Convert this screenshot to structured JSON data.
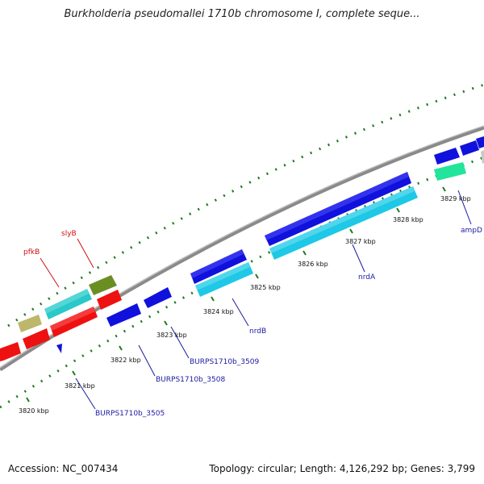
{
  "title": "Burkholderia pseudomallei 1710b chromosome I, complete seque...",
  "footer": {
    "accession": "Accession: NC_007434",
    "summary": "Topology: circular; Length: 4,126,292 bp; Genes: 3,799"
  },
  "colors": {
    "backbone": "#888888",
    "tick": "#1f7a1f",
    "label_blue": "#1a1aa0",
    "label_red": "#cc1111",
    "gene_blue": "#1111dd",
    "gene_cyan": "#1ec8e6",
    "gene_red": "#ee1111",
    "gene_olive": "#6b8e23",
    "gene_khaki": "#bdb76b",
    "gene_teal": "#2ad1c4",
    "gene_green": "#22e49a"
  },
  "scale_labels": [
    "3820 kbp",
    "3821 kbp",
    "3822 kbp",
    "3823 kbp",
    "3824 kbp",
    "3825 kbp",
    "3826 kbp",
    "3827 kbp",
    "3828 kbp",
    "3829 kbp"
  ],
  "gene_labels": [
    {
      "name": "pfkB",
      "color": "red"
    },
    {
      "name": "slyB",
      "color": "red"
    },
    {
      "name": "nrdB",
      "color": "blue"
    },
    {
      "name": "nrdA",
      "color": "blue"
    },
    {
      "name": "ampD",
      "color": "blue"
    },
    {
      "name": "BURPS1710b_3505",
      "color": "blue"
    },
    {
      "name": "BURPS1710b_3508",
      "color": "blue"
    },
    {
      "name": "BURPS1710b_3509",
      "color": "blue"
    }
  ]
}
